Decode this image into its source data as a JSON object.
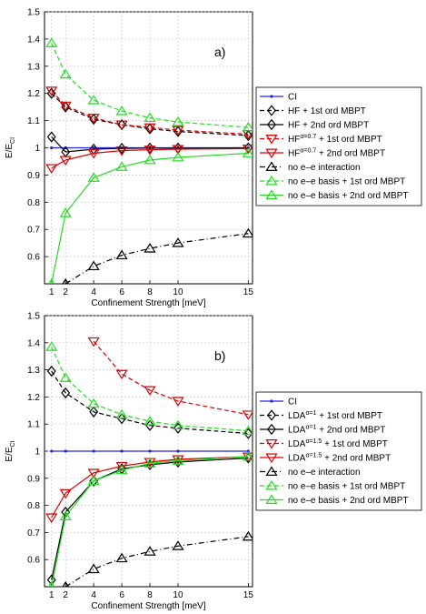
{
  "chart_data": [
    {
      "type": "line",
      "panel_label": "a)",
      "xlabel": "Confinement Strength [meV]",
      "ylabel": "E/E",
      "ylabel_sub": "CI",
      "xlim": [
        0.5,
        15.3
      ],
      "ylim": [
        0.5,
        1.5
      ],
      "xticks": [
        1,
        2,
        4,
        6,
        8,
        10,
        15
      ],
      "yticks": [
        0.6,
        0.7,
        0.8,
        0.9,
        1,
        1.1,
        1.2,
        1.3,
        1.4,
        1.5
      ],
      "grid": true,
      "legend_position": "right",
      "series": [
        {
          "label": "CI",
          "label_sup": "",
          "label_tail": "",
          "color": "#2222ee",
          "dash": "",
          "marker": "dot",
          "x": [
            1,
            2,
            4,
            6,
            8,
            10,
            15
          ],
          "y": [
            1,
            1,
            1,
            1,
            1,
            1,
            1
          ]
        },
        {
          "label": "HF + 1st ord MBPT",
          "label_sup": "",
          "label_tail": "",
          "color": "#000000",
          "dash": "5,3",
          "marker": "diamond",
          "x": [
            1,
            2,
            4,
            6,
            8,
            10,
            15
          ],
          "y": [
            1.2,
            1.15,
            1.105,
            1.085,
            1.07,
            1.06,
            1.045
          ]
        },
        {
          "label": "HF + 2nd ord MBPT",
          "label_sup": "",
          "label_tail": "",
          "color": "#000000",
          "dash": "",
          "marker": "diamond",
          "x": [
            1,
            2,
            4,
            6,
            8,
            10,
            15
          ],
          "y": [
            1.04,
            0.985,
            0.995,
            0.998,
            0.999,
            0.999,
            1.0
          ]
        },
        {
          "label": "HF",
          "label_sup": "α=0.7",
          "label_tail": " + 1st ord MBPT",
          "color": "#dd0000",
          "dash": "5,3",
          "marker": "tri-down",
          "x": [
            1,
            2,
            4,
            6,
            8,
            10,
            15
          ],
          "y": [
            1.21,
            1.155,
            1.11,
            1.085,
            1.075,
            1.065,
            1.05
          ]
        },
        {
          "label": "HF",
          "label_sup": "α=0.7",
          "label_tail": " + 2nd ord MBPT",
          "color": "#dd0000",
          "dash": "",
          "marker": "tri-down",
          "x": [
            1,
            2,
            4,
            6,
            8,
            10,
            15
          ],
          "y": [
            0.925,
            0.955,
            0.98,
            0.99,
            0.993,
            0.995,
            0.997
          ]
        },
        {
          "label": "no e–e interaction",
          "label_sup": "",
          "label_tail": "",
          "color": "#000000",
          "dash": "6,3,1,3",
          "marker": "tri-up",
          "x": [
            2,
            4,
            6,
            8,
            10,
            15
          ],
          "y": [
            0.5,
            0.565,
            0.605,
            0.63,
            0.65,
            0.685
          ]
        },
        {
          "label": "no e–e basis + 1st ord MBPT",
          "label_sup": "",
          "label_tail": "",
          "color": "#22dd22",
          "dash": "5,3",
          "marker": "tri-up",
          "x": [
            1,
            2,
            4,
            6,
            8,
            10,
            15
          ],
          "y": [
            1.385,
            1.27,
            1.175,
            1.135,
            1.11,
            1.095,
            1.075
          ]
        },
        {
          "label": "no e–e basis + 2nd ord MBPT",
          "label_sup": "",
          "label_tail": "",
          "color": "#22dd22",
          "dash": "",
          "marker": "tri-up",
          "x": [
            1,
            2,
            4,
            6,
            8,
            10,
            15
          ],
          "y": [
            0.5,
            0.76,
            0.89,
            0.93,
            0.955,
            0.965,
            0.98
          ]
        }
      ]
    },
    {
      "type": "line",
      "panel_label": "b)",
      "xlabel": "Confinement Strength [meV]",
      "ylabel": "E/E",
      "ylabel_sub": "CI",
      "xlim": [
        0.5,
        15.3
      ],
      "ylim": [
        0.5,
        1.5
      ],
      "xticks": [
        1,
        2,
        4,
        6,
        8,
        10,
        15
      ],
      "yticks": [
        0.6,
        0.7,
        0.8,
        0.9,
        1,
        1.1,
        1.2,
        1.3,
        1.4,
        1.5
      ],
      "grid": true,
      "legend_position": "right",
      "series": [
        {
          "label": "CI",
          "label_sup": "",
          "label_tail": "",
          "color": "#2222ee",
          "dash": "",
          "marker": "dot",
          "x": [
            1,
            2,
            4,
            6,
            8,
            10,
            15
          ],
          "y": [
            1,
            1,
            1,
            1,
            1,
            1,
            1
          ]
        },
        {
          "label": "LDA",
          "label_sup": "α=1",
          "label_tail": " + 1st ord MBPT",
          "color": "#000000",
          "dash": "5,3",
          "marker": "diamond",
          "x": [
            1,
            2,
            4,
            6,
            8,
            10,
            15
          ],
          "y": [
            1.295,
            1.215,
            1.145,
            1.12,
            1.095,
            1.085,
            1.065
          ]
        },
        {
          "label": "LDA",
          "label_sup": "α=1",
          "label_tail": " + 2nd ord MBPT",
          "color": "#000000",
          "dash": "",
          "marker": "diamond",
          "x": [
            1,
            2,
            4,
            6,
            8,
            10,
            15
          ],
          "y": [
            0.525,
            0.775,
            0.89,
            0.935,
            0.95,
            0.96,
            0.975
          ]
        },
        {
          "label": "LDA",
          "label_sup": "α=1.5",
          "label_tail": " + 1st ord MBPT",
          "color": "#dd0000",
          "dash": "5,3",
          "marker": "tri-down",
          "x": [
            4,
            6,
            8,
            10,
            15
          ],
          "y": [
            1.405,
            1.285,
            1.225,
            1.185,
            1.135
          ]
        },
        {
          "label": "LDA",
          "label_sup": "α=1.5",
          "label_tail": " + 2nd ord MBPT",
          "color": "#dd0000",
          "dash": "",
          "marker": "tri-down",
          "x": [
            1,
            2,
            4,
            6,
            8,
            10,
            15
          ],
          "y": [
            0.755,
            0.845,
            0.92,
            0.945,
            0.96,
            0.97,
            0.98
          ]
        },
        {
          "label": "no e–e interaction",
          "label_sup": "",
          "label_tail": "",
          "color": "#000000",
          "dash": "6,3,1,3",
          "marker": "tri-up",
          "x": [
            2,
            4,
            6,
            8,
            10,
            15
          ],
          "y": [
            0.5,
            0.565,
            0.605,
            0.63,
            0.65,
            0.685
          ]
        },
        {
          "label": "no e–e basis + 1st ord MBPT",
          "label_sup": "",
          "label_tail": "",
          "color": "#22dd22",
          "dash": "5,3",
          "marker": "tri-up",
          "x": [
            1,
            2,
            4,
            6,
            8,
            10,
            15
          ],
          "y": [
            1.385,
            1.27,
            1.175,
            1.135,
            1.11,
            1.095,
            1.075
          ]
        },
        {
          "label": "no e–e basis + 2nd ord MBPT",
          "label_sup": "",
          "label_tail": "",
          "color": "#22dd22",
          "dash": "",
          "marker": "tri-up",
          "x": [
            1,
            2,
            4,
            6,
            8,
            10,
            15
          ],
          "y": [
            0.5,
            0.76,
            0.89,
            0.93,
            0.955,
            0.965,
            0.98
          ]
        }
      ]
    }
  ]
}
